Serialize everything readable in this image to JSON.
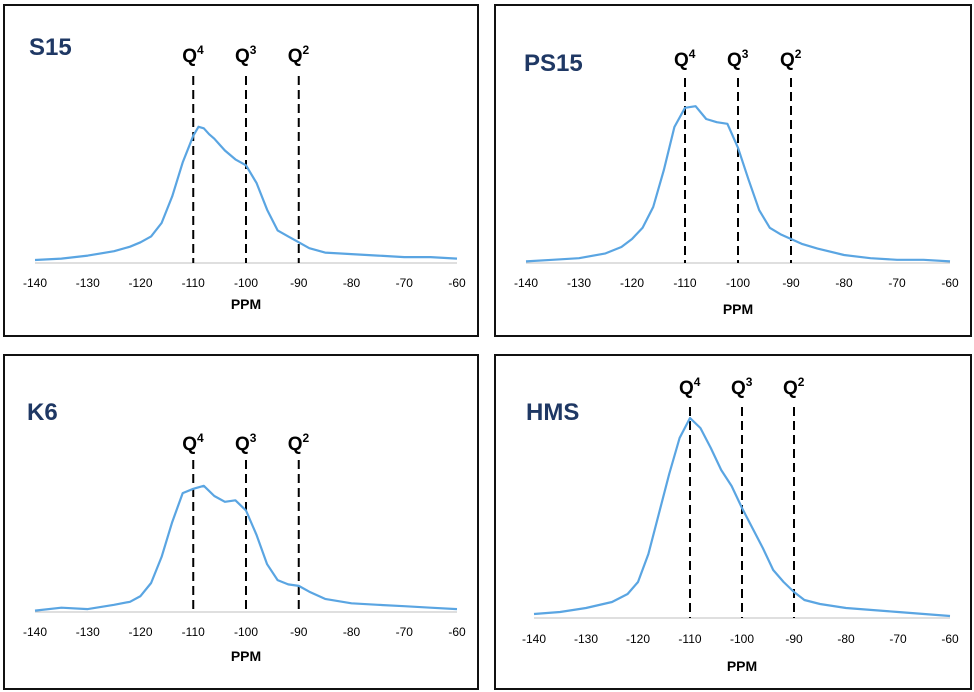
{
  "chart_data": [
    {
      "type": "line",
      "title": "S15",
      "xlabel": "PPM",
      "ylabel": "",
      "xlim": [
        -140,
        -60
      ],
      "x_ticks": [
        "-140",
        "-130",
        "-120",
        "-110",
        "-100",
        "-90",
        "-80",
        "-70",
        "-60"
      ],
      "reference_lines": [
        {
          "label": "Q",
          "superscript": "4",
          "x": -110
        },
        {
          "label": "Q",
          "superscript": "3",
          "x": -100
        },
        {
          "label": "Q",
          "superscript": "2",
          "x": -90
        }
      ],
      "series": [
        {
          "x": [
            -140,
            -135,
            -130,
            -125,
            -122,
            -120,
            -118,
            -116,
            -114,
            -112,
            -110,
            -109,
            -108,
            -107,
            -106,
            -105,
            -104,
            -102,
            -100,
            -98,
            -96,
            -94,
            -92,
            -90,
            -88,
            -85,
            -80,
            -75,
            -70,
            -65,
            -60
          ],
          "y": [
            0.02,
            0.03,
            0.05,
            0.08,
            0.11,
            0.14,
            0.18,
            0.27,
            0.45,
            0.68,
            0.86,
            0.92,
            0.91,
            0.87,
            0.84,
            0.8,
            0.76,
            0.7,
            0.66,
            0.54,
            0.36,
            0.22,
            0.18,
            0.14,
            0.1,
            0.07,
            0.06,
            0.05,
            0.04,
            0.04,
            0.03
          ]
        }
      ]
    },
    {
      "type": "line",
      "title": "PS15",
      "xlabel": "PPM",
      "ylabel": "",
      "xlim": [
        -140,
        -60
      ],
      "x_ticks": [
        "-140",
        "-130",
        "-120",
        "-110",
        "-100",
        "-90",
        "-80",
        "-70",
        "-60"
      ],
      "reference_lines": [
        {
          "label": "Q",
          "superscript": "4",
          "x": -110
        },
        {
          "label": "Q",
          "superscript": "3",
          "x": -100
        },
        {
          "label": "Q",
          "superscript": "2",
          "x": -90
        }
      ],
      "series": [
        {
          "x": [
            -140,
            -135,
            -130,
            -125,
            -122,
            -120,
            -118,
            -116,
            -114,
            -112,
            -110,
            -108,
            -106,
            -104,
            -102,
            -100,
            -98,
            -96,
            -94,
            -92,
            -90,
            -88,
            -85,
            -80,
            -75,
            -70,
            -65,
            -60
          ],
          "y": [
            0.01,
            0.02,
            0.03,
            0.06,
            0.1,
            0.15,
            0.22,
            0.35,
            0.58,
            0.85,
            0.97,
            0.98,
            0.9,
            0.88,
            0.87,
            0.72,
            0.52,
            0.33,
            0.22,
            0.18,
            0.15,
            0.12,
            0.09,
            0.05,
            0.03,
            0.02,
            0.02,
            0.01
          ]
        }
      ]
    },
    {
      "type": "line",
      "title": "K6",
      "xlabel": "PPM",
      "ylabel": "",
      "xlim": [
        -140,
        -60
      ],
      "x_ticks": [
        "-140",
        "-130",
        "-120",
        "-110",
        "-100",
        "-90",
        "-80",
        "-70",
        "-60"
      ],
      "reference_lines": [
        {
          "label": "Q",
          "superscript": "4",
          "x": -110
        },
        {
          "label": "Q",
          "superscript": "3",
          "x": -100
        },
        {
          "label": "Q",
          "superscript": "2",
          "x": -90
        }
      ],
      "series": [
        {
          "x": [
            -140,
            -135,
            -130,
            -125,
            -122,
            -120,
            -118,
            -116,
            -114,
            -112,
            -110,
            -108,
            -106,
            -104,
            -102,
            -100,
            -98,
            -96,
            -94,
            -92,
            -90,
            -88,
            -85,
            -80,
            -75,
            -70,
            -65,
            -60
          ],
          "y": [
            0.01,
            0.03,
            0.02,
            0.05,
            0.07,
            0.11,
            0.2,
            0.38,
            0.62,
            0.82,
            0.85,
            0.87,
            0.8,
            0.76,
            0.77,
            0.7,
            0.53,
            0.33,
            0.22,
            0.19,
            0.18,
            0.14,
            0.09,
            0.06,
            0.05,
            0.04,
            0.03,
            0.02
          ]
        }
      ]
    },
    {
      "type": "line",
      "title": "HMS",
      "xlabel": "PPM",
      "ylabel": "",
      "xlim": [
        -140,
        -60
      ],
      "x_ticks": [
        "-140",
        "-130",
        "-120",
        "-110",
        "-100",
        "-90",
        "-80",
        "-70",
        "-60"
      ],
      "reference_lines": [
        {
          "label": "Q",
          "superscript": "4",
          "x": -110
        },
        {
          "label": "Q",
          "superscript": "3",
          "x": -100
        },
        {
          "label": "Q",
          "superscript": "2",
          "x": -90
        }
      ],
      "series": [
        {
          "x": [
            -140,
            -135,
            -130,
            -125,
            -122,
            -120,
            -118,
            -116,
            -114,
            -112,
            -110,
            -108,
            -106,
            -104,
            -102,
            -100,
            -98,
            -96,
            -94,
            -92,
            -90,
            -88,
            -85,
            -80,
            -75,
            -70,
            -65,
            -60
          ],
          "y": [
            0.02,
            0.03,
            0.05,
            0.08,
            0.12,
            0.18,
            0.32,
            0.52,
            0.72,
            0.9,
            1.0,
            0.95,
            0.85,
            0.74,
            0.66,
            0.55,
            0.45,
            0.35,
            0.24,
            0.18,
            0.13,
            0.09,
            0.07,
            0.05,
            0.04,
            0.03,
            0.02,
            0.01
          ]
        }
      ]
    }
  ],
  "colors": {
    "spectrum": "#5aa5e2"
  }
}
